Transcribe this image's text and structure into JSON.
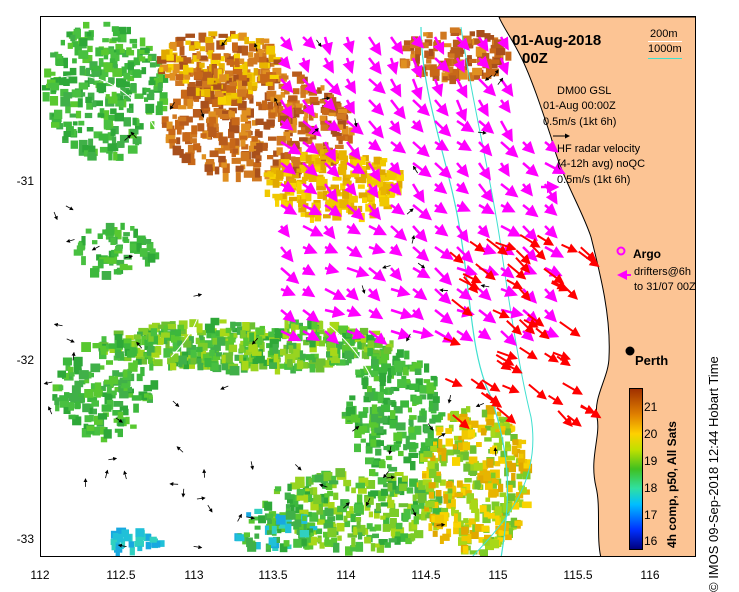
{
  "header": {
    "date": "01-Aug-2018",
    "time": "00Z"
  },
  "depth_legend": {
    "contour_a": "200m",
    "contour_b": "1000m",
    "contour_b_color": "#40e0d0"
  },
  "legend": {
    "model_name": "DM00 GSL",
    "model_time": "01-Aug 00:00Z",
    "model_scale": "0.5m/s (1kt 6h)",
    "radar_line1": "HF radar velocity",
    "radar_line2": "(4-12h avg) noQC",
    "radar_scale": "0.5m/s (1kt 6h)",
    "argo": "Argo",
    "drifters_line1": "drifters@6h",
    "drifters_line2": "to 31/07 00Z",
    "radar_color": "#ff00ff",
    "model_color": "#000000",
    "fast_current_color": "#ff0000"
  },
  "city": {
    "name": "Perth",
    "lon": 115.86,
    "lat": -31.95
  },
  "axes": {
    "x_ticks": [
      "112",
      "112.5",
      "113",
      "113.5",
      "114",
      "114.5",
      "115",
      "115.5",
      "116"
    ],
    "y_ticks": [
      "-31",
      "-32",
      "-33"
    ],
    "x_range": [
      112,
      116.3
    ],
    "y_range": [
      -33.1,
      -30.1
    ]
  },
  "colorbar": {
    "label": "4h comp, p50, All Sats",
    "ticks": [
      "21",
      "20",
      "19",
      "18",
      "17",
      "16"
    ],
    "range": [
      15.6,
      21.6
    ]
  },
  "credit": "© IMOS 09-Sep-2018 12:44 Hobart Time",
  "colors": {
    "land": "#fcc494",
    "coast": "#000000"
  }
}
